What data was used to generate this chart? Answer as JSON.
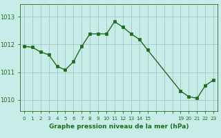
{
  "x": [
    0,
    1,
    2,
    3,
    4,
    5,
    6,
    7,
    8,
    9,
    10,
    11,
    12,
    13,
    14,
    15,
    19,
    20,
    21,
    22,
    23
  ],
  "y": [
    1011.93,
    1011.9,
    1011.73,
    1011.63,
    1011.22,
    1011.08,
    1011.38,
    1011.93,
    1012.38,
    1012.38,
    1012.38,
    1012.82,
    1012.62,
    1012.38,
    1012.18,
    1011.8,
    1010.32,
    1010.12,
    1010.06,
    1010.52,
    1010.72
  ],
  "line_color": "#1a6e1a",
  "marker_color": "#1a6e1a",
  "bg_color": "#c8ece8",
  "grid_color": "#aaccc8",
  "xlabel": "Graphe pression niveau de la mer (hPa)",
  "xlabel_color": "#1a6e1a",
  "tick_color": "#1a6e1a",
  "ylim_min": 1009.6,
  "ylim_max": 1013.45,
  "yticks": [
    1010,
    1011,
    1012,
    1013
  ],
  "xtick_shown": [
    "0",
    "1",
    "2",
    "3",
    "4",
    "5",
    "6",
    "7",
    "8",
    "9",
    "10",
    "11",
    "12",
    "13",
    "14",
    "15",
    "19",
    "20",
    "21",
    "22",
    "23"
  ],
  "xtick_all_positions": [
    0,
    1,
    2,
    3,
    4,
    5,
    6,
    7,
    8,
    9,
    10,
    11,
    12,
    13,
    14,
    15,
    16,
    17,
    18,
    19,
    20,
    21,
    22,
    23
  ],
  "xtick_all_labels": [
    "0",
    "1",
    "2",
    "3",
    "4",
    "5",
    "6",
    "7",
    "8",
    "9",
    "10",
    "11",
    "12",
    "13",
    "14",
    "15",
    "",
    "",
    "",
    "19",
    "20",
    "21",
    "22",
    "23"
  ]
}
